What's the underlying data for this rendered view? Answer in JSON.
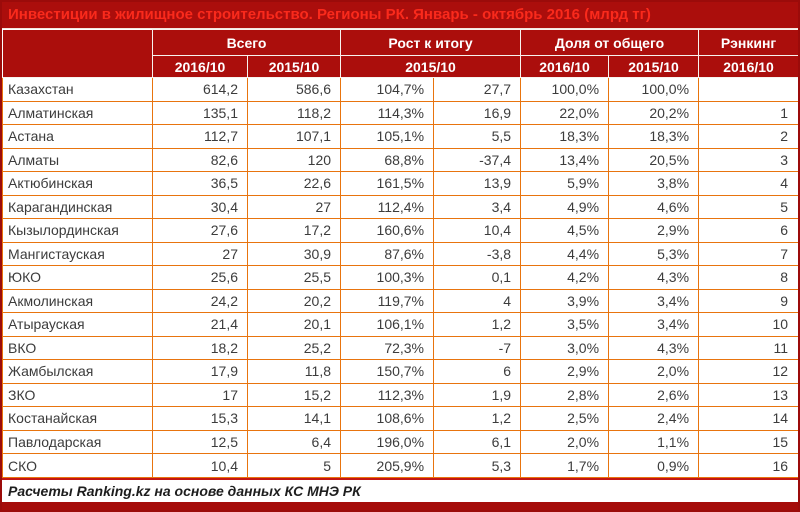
{
  "chart_data": {
    "type": "table",
    "title": "Инвестиции в жилищное строительство. Регионы РК. Январь - октябрь 2016 (млрд тг)",
    "unit": "млрд тг",
    "column_groups": [
      {
        "label": "Всего",
        "span": 2
      },
      {
        "label": "Рост к итогу",
        "span": 2
      },
      {
        "label": "Доля от общего",
        "span": 2
      },
      {
        "label": "Рэнкинг",
        "span": 1
      }
    ],
    "sub_headers": [
      {
        "label": "2016/10",
        "span": 1
      },
      {
        "label": "2015/10",
        "span": 1
      },
      {
        "label": "2015/10",
        "span": 2
      },
      {
        "label": "2016/10",
        "span": 1
      },
      {
        "label": "2015/10",
        "span": 1
      },
      {
        "label": "2016/10",
        "span": 1
      }
    ],
    "rows": [
      {
        "region": "Казахстан",
        "total_2016_10": "614,2",
        "total_2015_10": "586,6",
        "growth_pct_2015_10": "104,7%",
        "growth_abs": "27,7",
        "share_2016_10": "100,0%",
        "share_2015_10": "100,0%",
        "rank_2016_10": ""
      },
      {
        "region": "Алматинская",
        "total_2016_10": "135,1",
        "total_2015_10": "118,2",
        "growth_pct_2015_10": "114,3%",
        "growth_abs": "16,9",
        "share_2016_10": "22,0%",
        "share_2015_10": "20,2%",
        "rank_2016_10": "1"
      },
      {
        "region": "Астана",
        "total_2016_10": "112,7",
        "total_2015_10": "107,1",
        "growth_pct_2015_10": "105,1%",
        "growth_abs": "5,5",
        "share_2016_10": "18,3%",
        "share_2015_10": "18,3%",
        "rank_2016_10": "2"
      },
      {
        "region": "Алматы",
        "total_2016_10": "82,6",
        "total_2015_10": "120",
        "growth_pct_2015_10": "68,8%",
        "growth_abs": "-37,4",
        "share_2016_10": "13,4%",
        "share_2015_10": "20,5%",
        "rank_2016_10": "3"
      },
      {
        "region": "Актюбинская",
        "total_2016_10": "36,5",
        "total_2015_10": "22,6",
        "growth_pct_2015_10": "161,5%",
        "growth_abs": "13,9",
        "share_2016_10": "5,9%",
        "share_2015_10": "3,8%",
        "rank_2016_10": "4"
      },
      {
        "region": "Карагандинская",
        "total_2016_10": "30,4",
        "total_2015_10": "27",
        "growth_pct_2015_10": "112,4%",
        "growth_abs": "3,4",
        "share_2016_10": "4,9%",
        "share_2015_10": "4,6%",
        "rank_2016_10": "5"
      },
      {
        "region": "Кызылординская",
        "total_2016_10": "27,6",
        "total_2015_10": "17,2",
        "growth_pct_2015_10": "160,6%",
        "growth_abs": "10,4",
        "share_2016_10": "4,5%",
        "share_2015_10": "2,9%",
        "rank_2016_10": "6"
      },
      {
        "region": "Мангистауская",
        "total_2016_10": "27",
        "total_2015_10": "30,9",
        "growth_pct_2015_10": "87,6%",
        "growth_abs": "-3,8",
        "share_2016_10": "4,4%",
        "share_2015_10": "5,3%",
        "rank_2016_10": "7"
      },
      {
        "region": "ЮКО",
        "total_2016_10": "25,6",
        "total_2015_10": "25,5",
        "growth_pct_2015_10": "100,3%",
        "growth_abs": "0,1",
        "share_2016_10": "4,2%",
        "share_2015_10": "4,3%",
        "rank_2016_10": "8"
      },
      {
        "region": "Акмолинская",
        "total_2016_10": "24,2",
        "total_2015_10": "20,2",
        "growth_pct_2015_10": "119,7%",
        "growth_abs": "4",
        "share_2016_10": "3,9%",
        "share_2015_10": "3,4%",
        "rank_2016_10": "9"
      },
      {
        "region": "Атырауская",
        "total_2016_10": "21,4",
        "total_2015_10": "20,1",
        "growth_pct_2015_10": "106,1%",
        "growth_abs": "1,2",
        "share_2016_10": "3,5%",
        "share_2015_10": "3,4%",
        "rank_2016_10": "10"
      },
      {
        "region": "ВКО",
        "total_2016_10": "18,2",
        "total_2015_10": "25,2",
        "growth_pct_2015_10": "72,3%",
        "growth_abs": "-7",
        "share_2016_10": "3,0%",
        "share_2015_10": "4,3%",
        "rank_2016_10": "11"
      },
      {
        "region": "Жамбылская",
        "total_2016_10": "17,9",
        "total_2015_10": "11,8",
        "growth_pct_2015_10": "150,7%",
        "growth_abs": "6",
        "share_2016_10": "2,9%",
        "share_2015_10": "2,0%",
        "rank_2016_10": "12"
      },
      {
        "region": "ЗКО",
        "total_2016_10": "17",
        "total_2015_10": "15,2",
        "growth_pct_2015_10": "112,3%",
        "growth_abs": "1,9",
        "share_2016_10": "2,8%",
        "share_2015_10": "2,6%",
        "rank_2016_10": "13"
      },
      {
        "region": "Костанайская",
        "total_2016_10": "15,3",
        "total_2015_10": "14,1",
        "growth_pct_2015_10": "108,6%",
        "growth_abs": "1,2",
        "share_2016_10": "2,5%",
        "share_2015_10": "2,4%",
        "rank_2016_10": "14"
      },
      {
        "region": "Павлодарская",
        "total_2016_10": "12,5",
        "total_2015_10": "6,4",
        "growth_pct_2015_10": "196,0%",
        "growth_abs": "6,1",
        "share_2016_10": "2,0%",
        "share_2015_10": "1,1%",
        "rank_2016_10": "15"
      },
      {
        "region": "СКО",
        "total_2016_10": "10,4",
        "total_2015_10": "5",
        "growth_pct_2015_10": "205,9%",
        "growth_abs": "5,3",
        "share_2016_10": "1,7%",
        "share_2015_10": "0,9%",
        "rank_2016_10": "16"
      }
    ],
    "source": "Расчеты Ranking.kz на основе данных КС МНЭ РК"
  },
  "colors": {
    "header_background": "#AB0E0C",
    "title_text": "#FA2A1C",
    "header_text": "#FFFFFF",
    "grid_line": "#E8740E",
    "header_divider": "#F8F2EE",
    "outer_border": "#9B0B0A",
    "body_text": "#3C3C3C",
    "footer_text": "#1E1E1E",
    "footer_rule": "#C41512",
    "bottom_bar": "#A50C0A",
    "row_background": "#FFFFFF"
  }
}
